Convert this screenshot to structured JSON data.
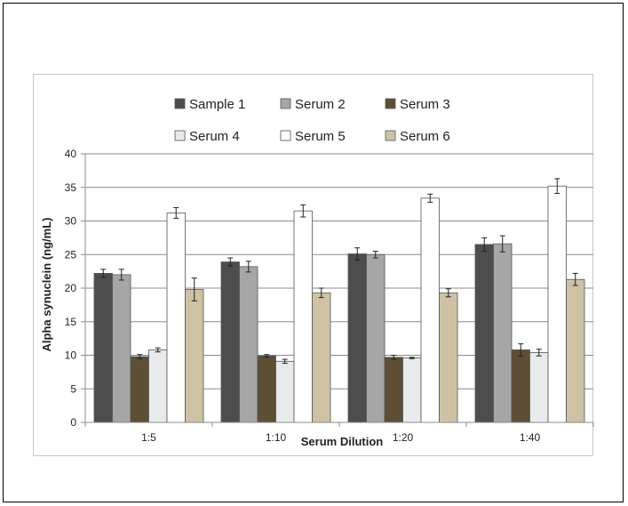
{
  "chart_data": {
    "type": "bar",
    "title": "",
    "xlabel": "Serum Dilution",
    "ylabel": "Alpha synuclein (ng/mL)",
    "ylim": [
      0,
      40
    ],
    "yticks": [
      "0",
      "5",
      "10",
      "15",
      "20",
      "25",
      "30",
      "35",
      "40"
    ],
    "categories": [
      "1:5",
      "1:10",
      "1:20",
      "1:40"
    ],
    "grid": true,
    "legend_position": "top",
    "series": [
      {
        "name": "Sample 1",
        "color": "#4d4d4d",
        "values": [
          22.2,
          23.9,
          25.1,
          26.5
        ],
        "errors": [
          0.6,
          0.6,
          0.9,
          1.0
        ]
      },
      {
        "name": "Serum 2",
        "color": "#a6a6a6",
        "values": [
          22.0,
          23.2,
          25.0,
          26.6
        ],
        "errors": [
          0.8,
          0.8,
          0.5,
          1.2
        ]
      },
      {
        "name": "Serum 3",
        "color": "#5c4f36",
        "values": [
          9.8,
          9.9,
          9.7,
          10.8
        ],
        "errors": [
          0.3,
          0.2,
          0.3,
          0.9
        ]
      },
      {
        "name": "Serum 4",
        "color": "#e9eaeb",
        "values": [
          10.8,
          9.1,
          9.6,
          10.4
        ],
        "errors": [
          0.3,
          0.3,
          0.1,
          0.5
        ]
      },
      {
        "name": "Serum 5",
        "color": "#ffffff",
        "values": [
          31.2,
          31.5,
          33.4,
          35.2
        ],
        "errors": [
          0.8,
          0.9,
          0.6,
          1.1
        ]
      },
      {
        "name": "Serum 6",
        "color": "#cdc3a4",
        "values": [
          19.8,
          19.3,
          19.3,
          21.3
        ],
        "errors": [
          1.7,
          0.7,
          0.6,
          0.9
        ]
      }
    ]
  }
}
